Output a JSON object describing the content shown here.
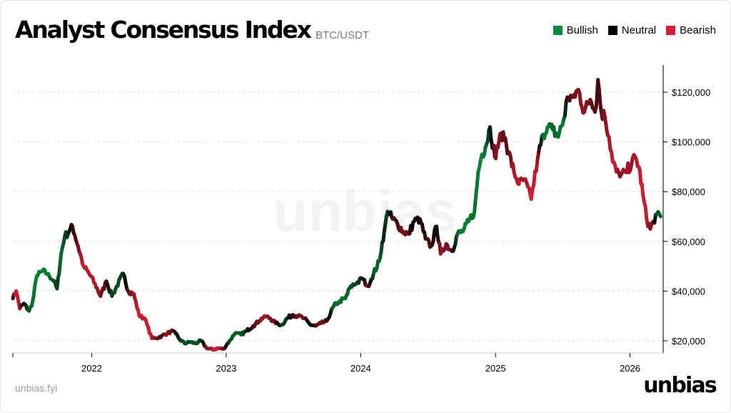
{
  "header": {
    "title": "Analyst Consensus Index",
    "subtitle": "BTC/USDT"
  },
  "legend": [
    {
      "label": "Bullish",
      "color": "#0a8a3a"
    },
    {
      "label": "Neutral",
      "color": "#000000"
    },
    {
      "label": "Bearish",
      "color": "#d31f35"
    }
  ],
  "footer": {
    "source": "unbias.fyi",
    "brand": "unbias",
    "watermark": "unbias"
  },
  "chart_data": {
    "type": "line",
    "y_axis_side": "right",
    "y_ticks": [
      20000,
      40000,
      60000,
      80000,
      100000,
      120000
    ],
    "y_tick_labels": [
      "$20,000",
      "$40,000",
      "$60,000",
      "$80,000",
      "$100,000",
      "$120,000"
    ],
    "ylim": [
      15000,
      130000
    ],
    "xlim": [
      "2021-06-01",
      "2026-04-01"
    ],
    "x_ticks": [
      "2022-01-01",
      "2023-01-01",
      "2024-01-01",
      "2025-01-01",
      "2026-01-01"
    ],
    "x_tick_labels": [
      "2022",
      "2023",
      "2024",
      "2025",
      "2026"
    ],
    "grid": "horizontal-dashed",
    "legend_position": "top-right",
    "sentiment_scale": "-1 = Bearish, 0 = Neutral, 1 = Bullish",
    "series": [
      {
        "x": [
          "2021-06-01",
          "2021-06-10",
          "2021-06-20",
          "2021-07-01",
          "2021-07-15",
          "2021-07-25",
          "2021-08-05",
          "2021-08-20",
          "2021-09-05",
          "2021-09-20",
          "2021-09-29",
          "2021-10-10",
          "2021-10-20",
          "2021-11-01",
          "2021-11-10",
          "2021-11-25",
          "2021-12-10",
          "2021-12-25",
          "2022-01-10",
          "2022-01-25",
          "2022-02-10",
          "2022-02-25",
          "2022-03-10",
          "2022-03-28",
          "2022-04-10",
          "2022-04-25",
          "2022-05-10",
          "2022-05-25",
          "2022-06-13",
          "2022-06-25",
          "2022-07-10",
          "2022-07-25",
          "2022-08-10",
          "2022-08-25",
          "2022-09-10",
          "2022-09-25",
          "2022-10-10",
          "2022-10-25",
          "2022-11-09",
          "2022-11-25",
          "2022-12-10",
          "2022-12-25",
          "2023-01-10",
          "2023-01-25",
          "2023-02-10",
          "2023-02-25",
          "2023-03-15",
          "2023-04-01",
          "2023-04-15",
          "2023-05-01",
          "2023-05-15",
          "2023-06-01",
          "2023-06-15",
          "2023-07-01",
          "2023-07-15",
          "2023-08-01",
          "2023-08-17",
          "2023-09-01",
          "2023-09-15",
          "2023-10-01",
          "2023-10-20",
          "2023-11-05",
          "2023-11-20",
          "2023-12-05",
          "2023-12-20",
          "2024-01-05",
          "2024-01-20",
          "2024-02-05",
          "2024-02-20",
          "2024-03-05",
          "2024-03-14",
          "2024-03-28",
          "2024-04-10",
          "2024-04-25",
          "2024-05-10",
          "2024-05-25",
          "2024-06-10",
          "2024-06-25",
          "2024-07-10",
          "2024-07-25",
          "2024-08-05",
          "2024-08-20",
          "2024-09-05",
          "2024-09-20",
          "2024-10-05",
          "2024-10-20",
          "2024-11-05",
          "2024-11-15",
          "2024-11-25",
          "2024-12-05",
          "2024-12-17",
          "2024-12-30",
          "2025-01-10",
          "2025-01-22",
          "2025-02-05",
          "2025-02-20",
          "2025-03-05",
          "2025-03-20",
          "2025-04-08",
          "2025-04-25",
          "2025-05-10",
          "2025-05-22",
          "2025-06-05",
          "2025-06-20",
          "2025-07-05",
          "2025-07-15",
          "2025-07-30",
          "2025-08-14",
          "2025-08-30",
          "2025-09-15",
          "2025-10-01",
          "2025-10-06",
          "2025-10-15",
          "2025-10-25",
          "2025-11-05",
          "2025-11-15",
          "2025-11-25",
          "2025-12-05",
          "2025-12-20",
          "2026-01-05",
          "2026-01-15",
          "2026-01-25",
          "2026-02-05",
          "2026-02-15",
          "2026-02-25",
          "2026-03-05",
          "2026-03-15",
          "2026-03-25"
        ],
        "values": [
          37000,
          40000,
          33000,
          35000,
          32000,
          36000,
          46000,
          48000,
          47000,
          44000,
          41000,
          55000,
          62000,
          64000,
          66000,
          58000,
          50000,
          47000,
          43000,
          38000,
          44000,
          38000,
          42000,
          47000,
          40000,
          39000,
          30000,
          29000,
          21000,
          21000,
          22000,
          23000,
          24000,
          21000,
          19000,
          19500,
          19000,
          20000,
          17000,
          16500,
          17000,
          16800,
          20000,
          23000,
          22500,
          24000,
          26000,
          28000,
          30000,
          29000,
          27000,
          26500,
          29000,
          30500,
          30000,
          29000,
          26500,
          26000,
          27000,
          28000,
          34000,
          36000,
          37000,
          42000,
          43000,
          45000,
          42000,
          47000,
          52000,
          64000,
          72000,
          69000,
          67000,
          64000,
          63000,
          68000,
          69000,
          61000,
          58000,
          66000,
          55000,
          59000,
          56000,
          63000,
          64000,
          68000,
          72000,
          88000,
          95000,
          98000,
          106000,
          94000,
          100000,
          104000,
          96000,
          88000,
          83000,
          85000,
          77000,
          93000,
          103000,
          106000,
          105000,
          102000,
          109000,
          118000,
          118000,
          121000,
          112000,
          117000,
          114000,
          125000,
          112000,
          110000,
          102000,
          92000,
          88000,
          86000,
          88000,
          91000,
          94000,
          90000,
          79000,
          69000,
          65000,
          68000,
          71000,
          70000
        ],
        "sentiment": [
          -0.2,
          -1,
          -0.8,
          0,
          0.6,
          0.8,
          0.9,
          0.9,
          0.9,
          0.6,
          0.4,
          0.8,
          0.5,
          0.3,
          -0.2,
          -0.5,
          -1,
          -0.8,
          -0.9,
          -0.6,
          -0.4,
          0.5,
          0.6,
          0.4,
          -0.4,
          -0.7,
          -1,
          -0.9,
          -1,
          -0.6,
          -0.3,
          -0.7,
          -0.4,
          0.2,
          0.6,
          0.5,
          0.6,
          0.5,
          -0.6,
          -0.8,
          -1,
          -0.6,
          0.5,
          0.7,
          0.6,
          0.4,
          -0.3,
          -0.6,
          -0.8,
          -0.6,
          -0.5,
          0.5,
          0.4,
          -0.2,
          -0.5,
          -0.6,
          0.2,
          -0.3,
          -0.6,
          -0.4,
          0.7,
          0.8,
          0.8,
          0.6,
          0.5,
          0.3,
          -0.7,
          0.6,
          0.8,
          0.2,
          0.6,
          -0.4,
          -0.3,
          -0.6,
          -0.5,
          0.2,
          -0.1,
          -0.2,
          -0.4,
          0.2,
          -0.7,
          -0.6,
          -0.5,
          0.7,
          0.9,
          0.9,
          0.8,
          0.9,
          1,
          0.8,
          0.3,
          -0.6,
          -0.7,
          -0.5,
          -0.4,
          -0.8,
          -0.9,
          -0.7,
          -1,
          -0.8,
          0.8,
          0.9,
          0.7,
          0.8,
          0.9,
          -0.3,
          -0.5,
          -0.6,
          -0.7,
          -0.5,
          -0.4,
          -0.3,
          -0.4,
          -0.6,
          -0.8,
          -0.9,
          -0.9,
          -0.6,
          -0.8,
          -0.7,
          -0.8,
          -0.9,
          -1,
          -0.9,
          -0.6,
          -0.7,
          0.6,
          0.7
        ]
      }
    ]
  }
}
